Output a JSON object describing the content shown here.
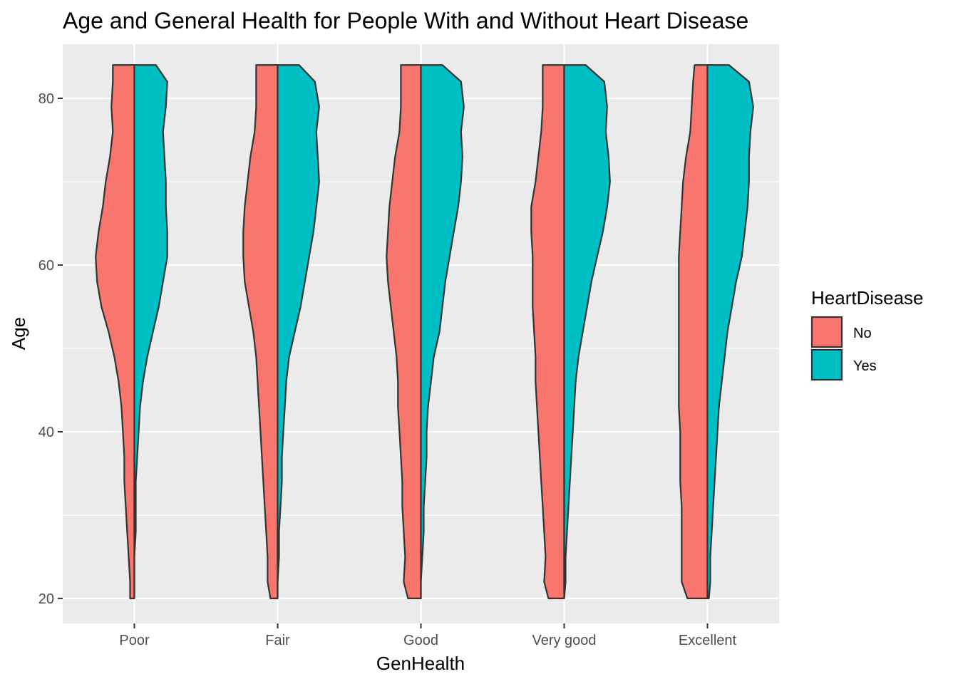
{
  "chart_data": {
    "type": "violin",
    "variant": "split",
    "title": "Age and General Health for People With and Without Heart Disease",
    "xlabel": "GenHealth",
    "ylabel": "Age",
    "categories": [
      "Poor",
      "Fair",
      "Good",
      "Very good",
      "Excellent"
    ],
    "ylim": [
      17,
      86.5
    ],
    "yticks": [
      20,
      40,
      60,
      80
    ],
    "grid": true,
    "legend": {
      "title": "HeartDisease",
      "placement": "right"
    },
    "series": [
      {
        "name": "No",
        "color": "#F8766D",
        "side": "left",
        "ages": [
          20,
          22,
          25,
          28,
          31,
          34,
          37,
          40,
          43,
          46,
          49,
          52,
          55,
          58,
          61,
          64,
          67,
          70,
          73,
          76,
          79,
          82,
          84
        ],
        "halfwidths": [
          [
            0.03,
            0.03,
            0.04,
            0.05,
            0.06,
            0.07,
            0.07,
            0.08,
            0.09,
            0.11,
            0.14,
            0.18,
            0.23,
            0.26,
            0.27,
            0.25,
            0.22,
            0.2,
            0.17,
            0.15,
            0.16,
            0.15,
            0.15
          ],
          [
            0.05,
            0.07,
            0.07,
            0.08,
            0.09,
            0.1,
            0.11,
            0.12,
            0.13,
            0.14,
            0.15,
            0.17,
            0.2,
            0.23,
            0.24,
            0.24,
            0.23,
            0.21,
            0.19,
            0.16,
            0.15,
            0.15,
            0.15
          ],
          [
            0.09,
            0.12,
            0.11,
            0.12,
            0.13,
            0.13,
            0.14,
            0.15,
            0.16,
            0.16,
            0.17,
            0.19,
            0.21,
            0.23,
            0.24,
            0.23,
            0.22,
            0.2,
            0.18,
            0.15,
            0.14,
            0.14,
            0.14
          ],
          [
            0.11,
            0.14,
            0.13,
            0.14,
            0.15,
            0.16,
            0.17,
            0.18,
            0.19,
            0.2,
            0.2,
            0.21,
            0.22,
            0.22,
            0.22,
            0.23,
            0.23,
            0.2,
            0.18,
            0.16,
            0.15,
            0.15,
            0.15
          ],
          [
            0.14,
            0.18,
            0.18,
            0.18,
            0.18,
            0.19,
            0.19,
            0.19,
            0.2,
            0.2,
            0.2,
            0.2,
            0.2,
            0.2,
            0.2,
            0.19,
            0.18,
            0.17,
            0.15,
            0.12,
            0.11,
            0.1,
            0.09
          ]
        ]
      },
      {
        "name": "Yes",
        "color": "#00BFC4",
        "side": "right",
        "ages": [
          20,
          22,
          25,
          28,
          31,
          34,
          37,
          40,
          43,
          46,
          49,
          52,
          55,
          58,
          61,
          64,
          67,
          70,
          73,
          76,
          79,
          82,
          84
        ],
        "halfwidths": [
          [
            0.0,
            0.0,
            0.0,
            0.01,
            0.01,
            0.01,
            0.02,
            0.03,
            0.04,
            0.06,
            0.09,
            0.13,
            0.17,
            0.2,
            0.23,
            0.23,
            0.22,
            0.22,
            0.21,
            0.2,
            0.22,
            0.23,
            0.15
          ],
          [
            0.0,
            0.0,
            0.01,
            0.01,
            0.02,
            0.03,
            0.03,
            0.04,
            0.05,
            0.06,
            0.08,
            0.12,
            0.16,
            0.19,
            0.22,
            0.25,
            0.27,
            0.29,
            0.28,
            0.27,
            0.29,
            0.26,
            0.15
          ],
          [
            0.0,
            0.0,
            0.01,
            0.02,
            0.02,
            0.03,
            0.04,
            0.04,
            0.05,
            0.07,
            0.09,
            0.13,
            0.15,
            0.17,
            0.2,
            0.23,
            0.26,
            0.28,
            0.29,
            0.28,
            0.3,
            0.28,
            0.15
          ],
          [
            0.0,
            0.01,
            0.01,
            0.02,
            0.03,
            0.04,
            0.05,
            0.06,
            0.07,
            0.08,
            0.1,
            0.13,
            0.16,
            0.19,
            0.23,
            0.27,
            0.3,
            0.32,
            0.31,
            0.29,
            0.3,
            0.28,
            0.15
          ],
          [
            0.01,
            0.02,
            0.02,
            0.03,
            0.04,
            0.05,
            0.06,
            0.07,
            0.08,
            0.1,
            0.12,
            0.14,
            0.17,
            0.2,
            0.24,
            0.26,
            0.28,
            0.29,
            0.29,
            0.3,
            0.32,
            0.29,
            0.15
          ]
        ]
      }
    ]
  }
}
